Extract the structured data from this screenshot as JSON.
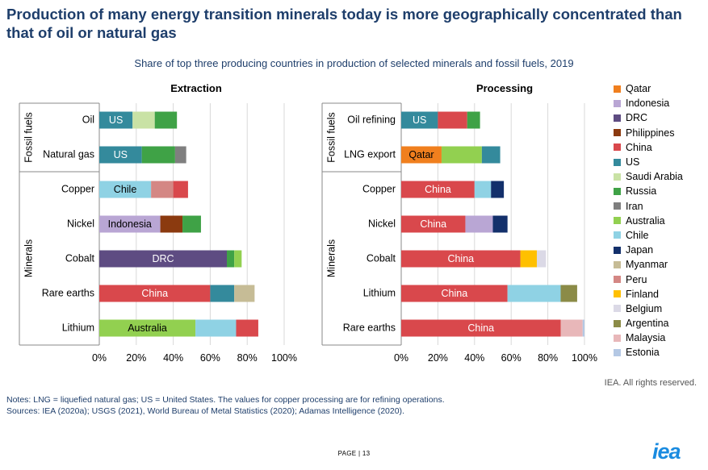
{
  "title": "Production of many energy transition minerals today is more geographically concentrated than that of oil or natural gas",
  "subtitle": "Share of top three producing countries in production of selected minerals and fossil fuels, 2019",
  "rights": "IEA. All rights reserved.",
  "notes": [
    "Notes: LNG = liquefied natural gas; US = United States. The values for copper processing are for refining operations.",
    "Sources: IEA (2020a); USGS (2021), World Bureau of Metal Statistics (2020); Adamas Intelligence (2020)."
  ],
  "footer": {
    "page_word": "Page",
    "page_sep": "|",
    "page_num": "13"
  },
  "logo": "iea",
  "legend": [
    {
      "name": "Qatar",
      "color": "#f07f1e"
    },
    {
      "name": "Indonesia",
      "color": "#b9a6d4"
    },
    {
      "name": "DRC",
      "color": "#5e4c82"
    },
    {
      "name": "Philippines",
      "color": "#8b3a0f"
    },
    {
      "name": "China",
      "color": "#d9484c"
    },
    {
      "name": "US",
      "color": "#348a9c"
    },
    {
      "name": "Saudi Arabia",
      "color": "#c9e2a5"
    },
    {
      "name": "Russia",
      "color": "#3fa246"
    },
    {
      "name": "Iran",
      "color": "#7f7f7f"
    },
    {
      "name": "Australia",
      "color": "#92d050"
    },
    {
      "name": "Chile",
      "color": "#8fd2e4"
    },
    {
      "name": "Japan",
      "color": "#13306b"
    },
    {
      "name": "Myanmar",
      "color": "#c6bc96"
    },
    {
      "name": "Peru",
      "color": "#d48784"
    },
    {
      "name": "Finland",
      "color": "#ffc000"
    },
    {
      "name": "Belgium",
      "color": "#dbd9e6"
    },
    {
      "name": "Argentina",
      "color": "#8b8b47"
    },
    {
      "name": "Malaysia",
      "color": "#e8b7b9"
    },
    {
      "name": "Estonia",
      "color": "#b4c8e4"
    }
  ],
  "chart_data": [
    {
      "type": "bar",
      "orientation": "horizontal",
      "stacked": true,
      "title": "Extraction",
      "xlim": [
        0,
        100
      ],
      "x_ticks": [
        "0%",
        "20%",
        "40%",
        "60%",
        "80%",
        "100%"
      ],
      "groups": [
        {
          "name": "Fossil fuels",
          "categories": [
            "Oil",
            "Natural gas"
          ]
        },
        {
          "name": "Minerals",
          "categories": [
            "Copper",
            "Nickel",
            "Cobalt",
            "Rare earths",
            "Lithium"
          ]
        }
      ],
      "bars": [
        {
          "category": "Oil",
          "segments": [
            {
              "country": "US",
              "value": 18,
              "label": "US"
            },
            {
              "country": "Saudi Arabia",
              "value": 12
            },
            {
              "country": "Russia",
              "value": 12
            }
          ]
        },
        {
          "category": "Natural gas",
          "segments": [
            {
              "country": "US",
              "value": 23,
              "label": "US"
            },
            {
              "country": "Russia",
              "value": 18
            },
            {
              "country": "Iran",
              "value": 6
            }
          ]
        },
        {
          "category": "Copper",
          "segments": [
            {
              "country": "Chile",
              "value": 28,
              "label": "Chile"
            },
            {
              "country": "Peru",
              "value": 12
            },
            {
              "country": "China",
              "value": 8
            }
          ]
        },
        {
          "category": "Nickel",
          "segments": [
            {
              "country": "Indonesia",
              "value": 33,
              "label": "Indonesia"
            },
            {
              "country": "Philippines",
              "value": 12
            },
            {
              "country": "Russia",
              "value": 10
            }
          ]
        },
        {
          "category": "Cobalt",
          "segments": [
            {
              "country": "DRC",
              "value": 69,
              "label": "DRC"
            },
            {
              "country": "Russia",
              "value": 4
            },
            {
              "country": "Australia",
              "value": 4
            }
          ]
        },
        {
          "category": "Rare earths",
          "segments": [
            {
              "country": "China",
              "value": 60,
              "label": "China"
            },
            {
              "country": "US",
              "value": 13
            },
            {
              "country": "Myanmar",
              "value": 11
            }
          ]
        },
        {
          "category": "Lithium",
          "segments": [
            {
              "country": "Australia",
              "value": 52,
              "label": "Australia"
            },
            {
              "country": "Chile",
              "value": 22
            },
            {
              "country": "China",
              "value": 12
            }
          ]
        }
      ]
    },
    {
      "type": "bar",
      "orientation": "horizontal",
      "stacked": true,
      "title": "Processing",
      "xlim": [
        0,
        100
      ],
      "x_ticks": [
        "0%",
        "20%",
        "40%",
        "60%",
        "80%",
        "100%"
      ],
      "groups": [
        {
          "name": "Fossil fuels",
          "categories": [
            "Oil refining",
            "LNG export"
          ]
        },
        {
          "name": "Minerals",
          "categories": [
            "Copper",
            "Nickel",
            "Cobalt",
            "Lithium",
            "Rare earths"
          ]
        }
      ],
      "bars": [
        {
          "category": "Oil refining",
          "segments": [
            {
              "country": "US",
              "value": 20,
              "label": "US"
            },
            {
              "country": "China",
              "value": 16
            },
            {
              "country": "Russia",
              "value": 7
            }
          ]
        },
        {
          "category": "LNG export",
          "segments": [
            {
              "country": "Qatar",
              "value": 22,
              "label": "Qatar"
            },
            {
              "country": "Australia",
              "value": 22
            },
            {
              "country": "US",
              "value": 10
            }
          ]
        },
        {
          "category": "Copper",
          "segments": [
            {
              "country": "China",
              "value": 40,
              "label": "China"
            },
            {
              "country": "Chile",
              "value": 9
            },
            {
              "country": "Japan",
              "value": 7
            }
          ]
        },
        {
          "category": "Nickel",
          "segments": [
            {
              "country": "China",
              "value": 35,
              "label": "China"
            },
            {
              "country": "Indonesia",
              "value": 15
            },
            {
              "country": "Japan",
              "value": 8
            }
          ]
        },
        {
          "category": "Cobalt",
          "segments": [
            {
              "country": "China",
              "value": 65,
              "label": "China"
            },
            {
              "country": "Finland",
              "value": 9
            },
            {
              "country": "Belgium",
              "value": 5
            }
          ]
        },
        {
          "category": "Lithium",
          "segments": [
            {
              "country": "China",
              "value": 58,
              "label": "China"
            },
            {
              "country": "Chile",
              "value": 29
            },
            {
              "country": "Argentina",
              "value": 9
            }
          ]
        },
        {
          "category": "Rare earths",
          "segments": [
            {
              "country": "China",
              "value": 87,
              "label": "China"
            },
            {
              "country": "Malaysia",
              "value": 12
            },
            {
              "country": "Estonia",
              "value": 1
            }
          ]
        }
      ]
    }
  ]
}
